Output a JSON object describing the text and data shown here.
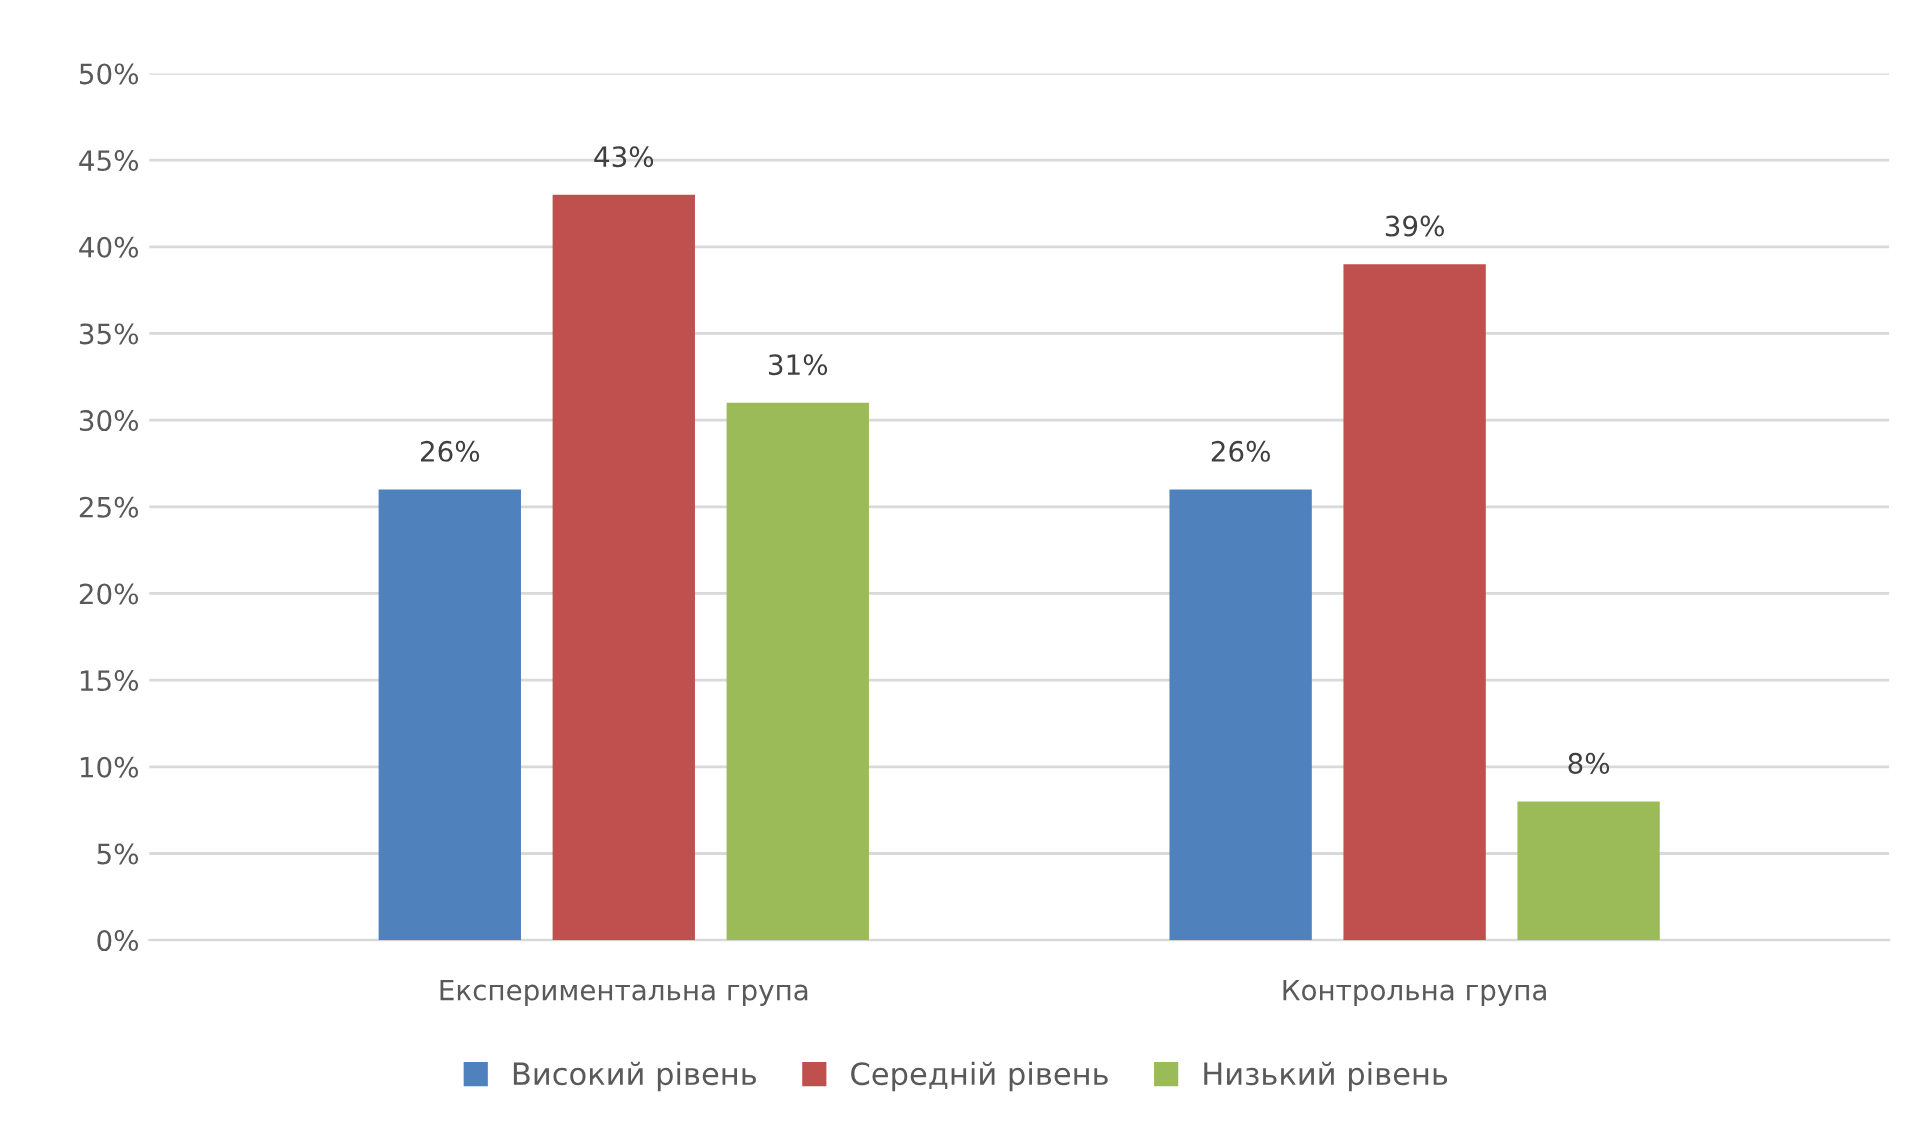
{
  "chart_data": {
    "type": "bar",
    "categories": [
      "Експериментальна група",
      "Контрольна група"
    ],
    "series": [
      {
        "name": "Високий рівень",
        "color": "#4f81bd",
        "values": [
          26,
          26
        ],
        "value_labels": [
          "26%",
          "26%"
        ]
      },
      {
        "name": "Середній рівень",
        "color": "#c0504d",
        "values": [
          43,
          39
        ],
        "value_labels": [
          "43%",
          "39%"
        ]
      },
      {
        "name": "Низький рівень",
        "color": "#9bbb59",
        "values": [
          31,
          8
        ],
        "value_labels": [
          "31%",
          "8%"
        ]
      }
    ],
    "ylim": [
      0,
      50
    ],
    "yticks": [
      {
        "value": 0,
        "label": "0%"
      },
      {
        "value": 5,
        "label": "5%"
      },
      {
        "value": 10,
        "label": "10%"
      },
      {
        "value": 15,
        "label": "15%"
      },
      {
        "value": 20,
        "label": "20%"
      },
      {
        "value": 25,
        "label": "25%"
      },
      {
        "value": 30,
        "label": "30%"
      },
      {
        "value": 35,
        "label": "35%"
      },
      {
        "value": 40,
        "label": "40%"
      },
      {
        "value": 45,
        "label": "45%"
      },
      {
        "value": 50,
        "label": "50%"
      }
    ],
    "grid": "y",
    "legend": "bottom"
  }
}
